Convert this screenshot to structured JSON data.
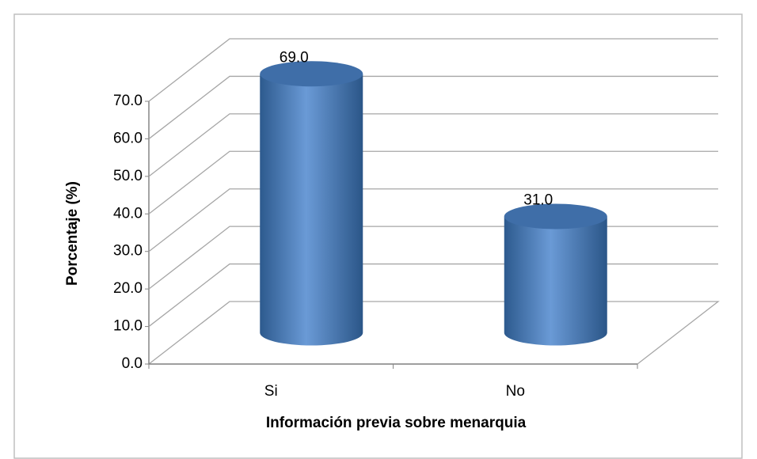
{
  "chart_data": {
    "type": "cylinder",
    "x_label": "Información previa sobre menarquia",
    "y_label": "Porcentaje (%)",
    "categories": [
      "Si",
      "No"
    ],
    "values": [
      69.0,
      31.0
    ],
    "value_labels": [
      "69.0",
      "31.0"
    ],
    "color": "#4f81bd",
    "ylim": [
      0,
      70
    ],
    "yticks": [
      {
        "value": 0,
        "label": "0.0"
      },
      {
        "value": 10,
        "label": "10.0"
      },
      {
        "value": 20,
        "label": "20.0"
      },
      {
        "value": 30,
        "label": "30.0"
      },
      {
        "value": 40,
        "label": "40.0"
      },
      {
        "value": 50,
        "label": "50.0"
      },
      {
        "value": 60,
        "label": "60.0"
      },
      {
        "value": 70,
        "label": "70.0"
      }
    ],
    "grid": true
  }
}
